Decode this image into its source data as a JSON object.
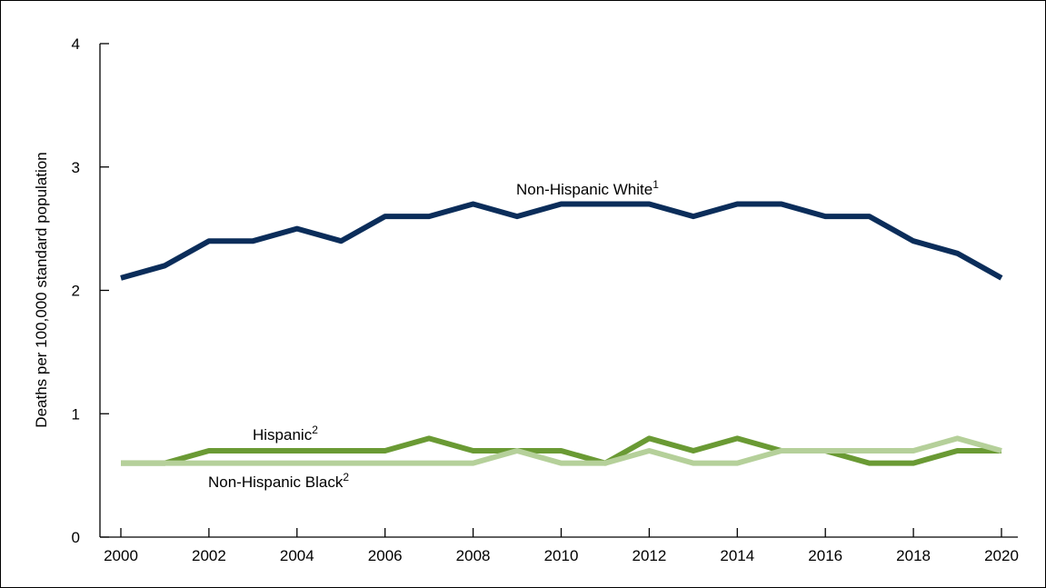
{
  "chart_data": {
    "type": "line",
    "title": "",
    "xlabel": "",
    "ylabel": "Deaths per 100,000 standard population",
    "x": [
      2000,
      2001,
      2002,
      2003,
      2004,
      2005,
      2006,
      2007,
      2008,
      2009,
      2010,
      2011,
      2012,
      2013,
      2014,
      2015,
      2016,
      2017,
      2018,
      2019,
      2020
    ],
    "x_ticks": [
      "2000",
      "2002",
      "2004",
      "2006",
      "2008",
      "2010",
      "2012",
      "2014",
      "2016",
      "2018",
      "2020"
    ],
    "y_ticks": [
      "0",
      "1",
      "2",
      "3",
      "4"
    ],
    "xlim": [
      2000,
      2020
    ],
    "ylim": [
      0,
      4
    ],
    "grid": false,
    "series": [
      {
        "name": "Non-Hispanic White",
        "footnote": "1",
        "color": "#0b2d5a",
        "values": [
          2.1,
          2.2,
          2.4,
          2.4,
          2.5,
          2.4,
          2.6,
          2.6,
          2.7,
          2.6,
          2.7,
          2.7,
          2.7,
          2.6,
          2.7,
          2.7,
          2.6,
          2.6,
          2.4,
          2.3,
          2.1
        ]
      },
      {
        "name": "Hispanic",
        "footnote": "2",
        "color": "#6a9a34",
        "values": [
          0.6,
          0.6,
          0.7,
          0.7,
          0.7,
          0.7,
          0.7,
          0.8,
          0.7,
          0.7,
          0.7,
          0.6,
          0.8,
          0.7,
          0.8,
          0.7,
          0.7,
          0.6,
          0.6,
          0.7,
          0.7
        ]
      },
      {
        "name": "Non-Hispanic Black",
        "footnote": "2",
        "color": "#b5d09a",
        "values": [
          0.6,
          0.6,
          0.6,
          0.6,
          0.6,
          0.6,
          0.6,
          0.6,
          0.6,
          0.7,
          0.6,
          0.6,
          0.7,
          0.6,
          0.6,
          0.7,
          0.7,
          0.7,
          0.7,
          0.8,
          0.7
        ]
      }
    ]
  }
}
